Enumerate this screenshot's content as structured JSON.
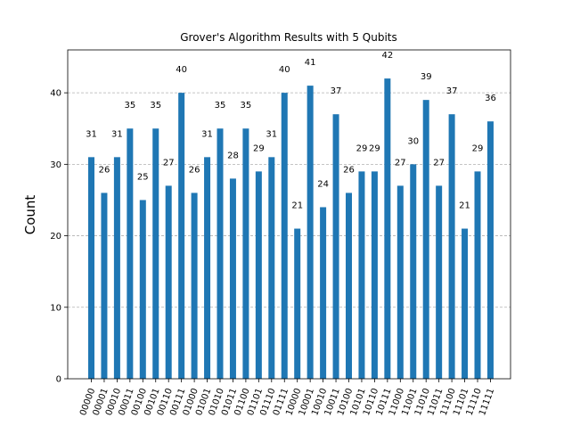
{
  "chart_data": {
    "type": "bar",
    "title": "Grover's Algorithm Results with 5 Qubits",
    "xlabel": "",
    "ylabel": "Count",
    "ylim": [
      0,
      46
    ],
    "yticks": [
      0,
      10,
      20,
      30,
      40
    ],
    "grid": "horizontal dashed",
    "categories": [
      "00000",
      "00001",
      "00010",
      "00011",
      "00100",
      "00101",
      "00110",
      "00111",
      "01000",
      "01001",
      "01010",
      "01011",
      "01100",
      "01101",
      "01110",
      "01111",
      "10000",
      "10001",
      "10010",
      "10011",
      "10100",
      "10101",
      "10110",
      "10111",
      "11000",
      "11001",
      "11010",
      "11011",
      "11100",
      "11101",
      "11110",
      "11111"
    ],
    "values": [
      31,
      26,
      31,
      35,
      25,
      35,
      27,
      40,
      26,
      31,
      35,
      28,
      35,
      29,
      31,
      40,
      21,
      41,
      24,
      37,
      26,
      29,
      29,
      42,
      27,
      30,
      39,
      27,
      37,
      21,
      29,
      36
    ],
    "bar_color": "#1f77b4"
  }
}
